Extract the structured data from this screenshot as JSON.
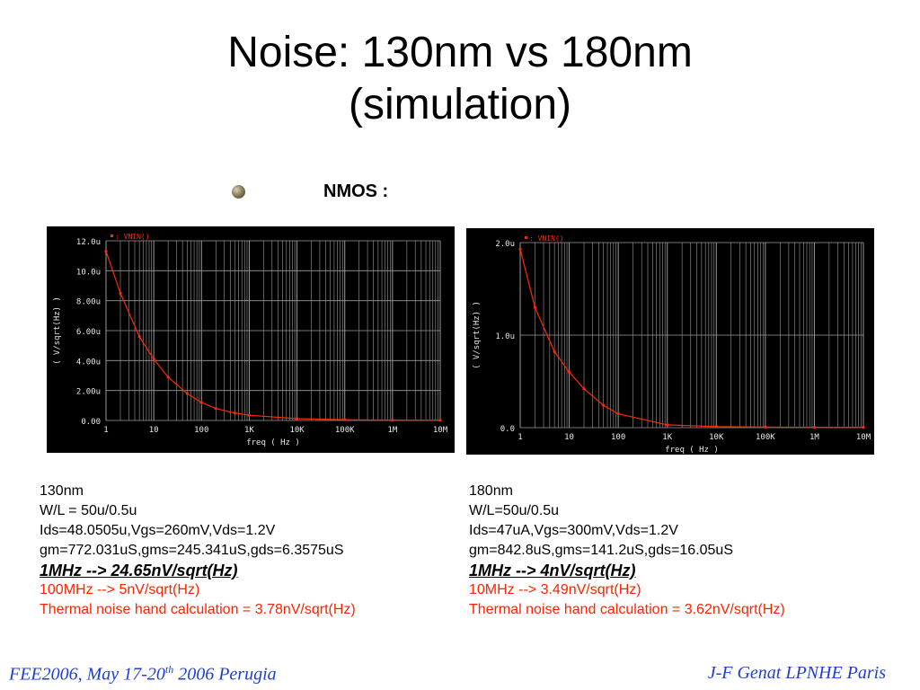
{
  "slide": {
    "title_line1": "Noise: 130nm vs 180nm",
    "title_line2": "(simulation)",
    "bullet_label": "NMOS :",
    "footer_left": {
      "prefix": "FEE2006, May 17-20",
      "sup": "th",
      "suffix": " 2006 Perugia"
    },
    "footer_right": "J-F Genat LPNHE Paris"
  },
  "left_info": {
    "node": "130nm",
    "wl": "W/L = 50u/0.5u",
    "bias": "Ids=48.0505u,Vgs=260mV,Vds=1.2V",
    "gm": "gm=772.031uS,gms=245.341uS,gds=6.3575uS",
    "highlight": "1MHz --> 24.65nV/sqrt(Hz)",
    "red1": "100MHz --> 5nV/sqrt(Hz)",
    "red2": "Thermal noise hand calculation = 3.78nV/sqrt(Hz)"
  },
  "right_info": {
    "node": "180nm",
    "wl": "W/L=50u/0.5u",
    "bias": "Ids=47uA,Vgs=300mV,Vds=1.2V",
    "gm": "gm=842.8uS,gms=141.2uS,gds=16.05uS",
    "highlight": "1MHz --> 4nV/sqrt(Hz)",
    "red1": "10MHz --> 3.49nV/sqrt(Hz)",
    "red2": "Thermal noise hand calculation = 3.62nV/sqrt(Hz)"
  },
  "colors": {
    "plot_bg": "#000000",
    "trace": "#ff2a00",
    "grid": "#9a9a9a",
    "axis_text": "#e8e8e8",
    "footer": "#1f3fd0",
    "red_text": "#ff2200"
  },
  "chart_data": [
    {
      "type": "line",
      "legend": "VNIN()",
      "ylabel": "( V/sqrt(Hz) )",
      "xlabel": "freq ( Hz )",
      "x_scale": "log",
      "xlim": [
        1,
        10000000
      ],
      "ylim": [
        0,
        1.2e-05
      ],
      "x_ticks": [
        "1",
        "10",
        "100",
        "1K",
        "10K",
        "100K",
        "1M",
        "10M"
      ],
      "y_ticks": [
        "0.00",
        "2.00u",
        "4.00u",
        "6.00u",
        "8.00u",
        "10.0u",
        "12.0u"
      ],
      "grid": true,
      "series": [
        {
          "name": "VNIN()",
          "x": [
            1,
            2,
            5,
            10,
            20,
            50,
            100,
            200,
            500,
            1000,
            10000,
            100000,
            1000000,
            10000000
          ],
          "y": [
            1.13e-05,
            8.5e-06,
            5.6e-06,
            4.1e-06,
            2.9e-06,
            1.8e-06,
            1.2e-06,
            8e-07,
            5e-07,
            3.5e-07,
            1.2e-07,
            5e-08,
            2.5e-08,
            2e-08
          ]
        }
      ]
    },
    {
      "type": "line",
      "legend": "VNIN()",
      "ylabel": "( V/sqrt(Hz) )",
      "xlabel": "freq ( Hz )",
      "x_scale": "log",
      "xlim": [
        1,
        10000000
      ],
      "ylim": [
        0,
        2e-06
      ],
      "x_ticks": [
        "1",
        "10",
        "100",
        "1K",
        "10K",
        "100K",
        "1M",
        "10M"
      ],
      "y_ticks": [
        "0.0",
        "1.0u",
        "2.0u"
      ],
      "grid": true,
      "series": [
        {
          "name": "VNIN()",
          "x": [
            1,
            2,
            5,
            10,
            20,
            50,
            100,
            1000,
            10000,
            100000,
            1000000,
            10000000
          ],
          "y": [
            1.93e-06,
            1.3e-06,
            8.2e-07,
            6e-07,
            4.2e-07,
            2.4e-07,
            1.5e-07,
            3e-08,
            1.2e-08,
            6e-09,
            4e-09,
            4e-09
          ]
        }
      ]
    }
  ]
}
